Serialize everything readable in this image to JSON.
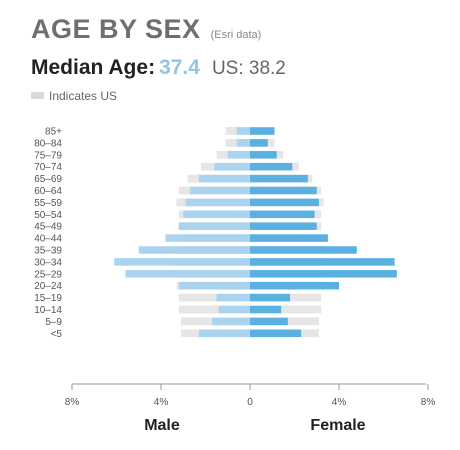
{
  "header": {
    "title": "AGE BY SEX",
    "source": "(Esri data)",
    "median_label": "Median Age:",
    "median_value": "37.4",
    "us_label": "US: 38.2",
    "legend_text": "Indicates US"
  },
  "colors": {
    "male": "#a9d3ee",
    "female": "#5ab0e1",
    "us": "#e6e6e6",
    "median_value": "#8fc6e3"
  },
  "chart_data": {
    "type": "bar",
    "orientation": "horizontal",
    "categories": [
      "85+",
      "80–84",
      "75–79",
      "70–74",
      "65–69",
      "60–64",
      "55–59",
      "50–54",
      "45–49",
      "40–44",
      "35–39",
      "30–34",
      "25–29",
      "20–24",
      "15–19",
      "10–14",
      "5–9",
      "<5"
    ],
    "series": [
      {
        "name": "Male",
        "values": [
          0.6,
          0.6,
          1.0,
          1.6,
          2.3,
          2.7,
          2.9,
          3.0,
          3.2,
          3.8,
          5.0,
          6.1,
          5.6,
          3.2,
          1.5,
          1.4,
          1.7,
          2.3
        ]
      },
      {
        "name": "Female",
        "values": [
          1.1,
          0.8,
          1.2,
          1.9,
          2.6,
          3.0,
          3.1,
          2.9,
          3.0,
          3.5,
          4.8,
          6.5,
          6.6,
          4.0,
          1.8,
          1.4,
          1.7,
          2.3
        ]
      },
      {
        "name": "US",
        "values": [
          1.1,
          1.1,
          1.5,
          2.2,
          2.8,
          3.2,
          3.3,
          3.2,
          3.2,
          3.2,
          3.3,
          3.4,
          3.4,
          3.3,
          3.2,
          3.2,
          3.1,
          3.1
        ]
      }
    ],
    "xlim": [
      -8,
      8
    ],
    "x_ticks": [
      "8%",
      "4%",
      "0",
      "4%",
      "8%"
    ],
    "axis_labels": {
      "left": "Male",
      "right": "Female"
    },
    "grid": false
  }
}
